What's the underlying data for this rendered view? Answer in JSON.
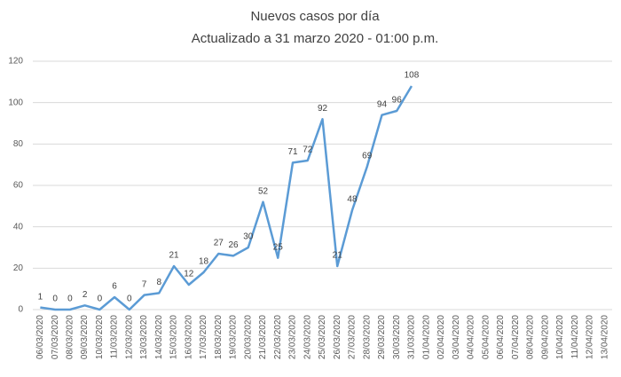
{
  "chart_data": {
    "type": "line",
    "title": "Nuevos casos por día",
    "subtitle": "Actualizado a 31 marzo 2020 - 01:00 p.m.",
    "categories": [
      "06/03/2020",
      "07/03/2020",
      "08/03/2020",
      "09/03/2020",
      "10/03/2020",
      "11/03/2020",
      "12/03/2020",
      "13/03/2020",
      "14/03/2020",
      "15/03/2020",
      "16/03/2020",
      "17/03/2020",
      "18/03/2020",
      "19/03/2020",
      "20/03/2020",
      "21/03/2020",
      "22/03/2020",
      "23/03/2020",
      "24/03/2020",
      "25/03/2020",
      "26/03/2020",
      "27/03/2020",
      "28/03/2020",
      "29/03/2020",
      "30/03/2020",
      "31/03/2020",
      "01/04/2020",
      "02/04/2020",
      "03/04/2020",
      "04/04/2020",
      "05/04/2020",
      "06/04/2020",
      "07/04/2020",
      "08/04/2020",
      "09/04/2020",
      "10/04/2020",
      "11/04/2020",
      "12/04/2020",
      "13/04/2020"
    ],
    "values": [
      1,
      0,
      0,
      2,
      0,
      6,
      0,
      7,
      8,
      21,
      12,
      18,
      27,
      26,
      30,
      52,
      25,
      71,
      72,
      92,
      21,
      48,
      69,
      94,
      96,
      108,
      null,
      null,
      null,
      null,
      null,
      null,
      null,
      null,
      null,
      null,
      null,
      null,
      null
    ],
    "color": "#5b9bd5",
    "ylim": [
      0,
      120
    ],
    "yticks": [
      0,
      20,
      40,
      60,
      80,
      100,
      120
    ],
    "grid": true
  }
}
